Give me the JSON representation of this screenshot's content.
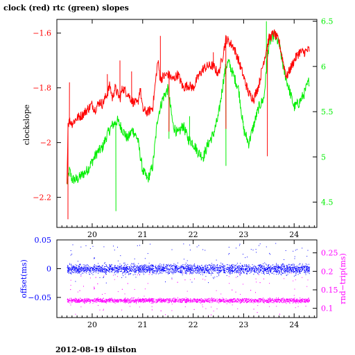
{
  "figure_title": "clock (red) rtc (green) slopes",
  "footer": "2012-08-19 dilston",
  "colors": {
    "clock": "#ff0000",
    "rtc": "#00ee00",
    "offset": "#0000ff",
    "rnd_trip": "#ff00ff",
    "frame": "#000000"
  },
  "chart_data": [
    {
      "type": "line",
      "title": "clock (red) rtc (green) slopes",
      "xlabel": "",
      "ylabel": "clockslope",
      "y2label": "",
      "xlim": [
        19.3,
        24.45
      ],
      "ylim": [
        -2.31,
        -1.55
      ],
      "y2lim": [
        4.22,
        6.52
      ],
      "xticks": [
        20,
        21,
        22,
        23,
        24
      ],
      "yticks": [
        -2.2,
        -2,
        -1.8,
        -1.6
      ],
      "y2ticks": [
        4.5,
        5,
        5.5,
        6,
        6.5
      ],
      "ytick_labels": [
        "−2.2",
        "−2",
        "−1.8",
        "−1.6"
      ],
      "y2tick_labels": [
        "4.5",
        "5",
        "5.5",
        "6",
        "6.5"
      ],
      "series": [
        {
          "name": "clock",
          "axis": "left",
          "x": [
            19.5,
            19.52,
            19.56,
            19.6,
            19.7,
            19.8,
            19.9,
            20.0,
            20.05,
            20.15,
            20.2,
            20.3,
            20.35,
            20.4,
            20.45,
            20.5,
            20.55,
            20.6,
            20.7,
            20.8,
            20.9,
            20.95,
            21.0,
            21.1,
            21.2,
            21.3,
            21.35,
            21.4,
            21.5,
            21.6,
            21.7,
            21.8,
            21.9,
            22.0,
            22.1,
            22.2,
            22.3,
            22.4,
            22.5,
            22.6,
            22.65,
            22.7,
            22.8,
            22.9,
            23.0,
            23.1,
            23.2,
            23.3,
            23.4,
            23.5,
            23.6,
            23.7,
            23.8,
            23.85,
            23.9,
            24.0,
            24.1,
            24.2,
            24.3
          ],
          "y": [
            -2.15,
            -1.93,
            -1.92,
            -1.93,
            -1.91,
            -1.9,
            -1.88,
            -1.86,
            -1.88,
            -1.85,
            -1.86,
            -1.82,
            -1.79,
            -1.84,
            -1.8,
            -1.82,
            -1.84,
            -1.8,
            -1.82,
            -1.85,
            -1.86,
            -1.8,
            -1.88,
            -1.89,
            -1.87,
            -1.7,
            -1.77,
            -1.76,
            -1.75,
            -1.77,
            -1.75,
            -1.8,
            -1.79,
            -1.8,
            -1.76,
            -1.73,
            -1.72,
            -1.72,
            -1.75,
            -1.67,
            -1.62,
            -1.63,
            -1.65,
            -1.7,
            -1.76,
            -1.82,
            -1.84,
            -1.79,
            -1.7,
            -1.62,
            -1.6,
            -1.63,
            -1.72,
            -1.76,
            -1.74,
            -1.7,
            -1.67,
            -1.67,
            -1.66
          ],
          "spikes": [
            {
              "x": 19.52,
              "y": -2.28
            },
            {
              "x": 19.55,
              "y": -1.78
            },
            {
              "x": 20.3,
              "y": -1.75
            },
            {
              "x": 20.55,
              "y": -1.7
            },
            {
              "x": 20.78,
              "y": -1.74
            },
            {
              "x": 21.35,
              "y": -1.61
            },
            {
              "x": 21.52,
              "y": -1.96
            },
            {
              "x": 22.4,
              "y": -1.67
            },
            {
              "x": 22.65,
              "y": -1.95
            },
            {
              "x": 23.47,
              "y": -2.05
            }
          ]
        },
        {
          "name": "rtc",
          "axis": "right",
          "x": [
            19.5,
            19.55,
            19.6,
            19.7,
            19.8,
            19.9,
            20.0,
            20.1,
            20.2,
            20.3,
            20.4,
            20.5,
            20.6,
            20.7,
            20.8,
            20.9,
            21.0,
            21.1,
            21.2,
            21.3,
            21.4,
            21.5,
            21.6,
            21.7,
            21.8,
            21.9,
            22.0,
            22.1,
            22.2,
            22.3,
            22.4,
            22.5,
            22.6,
            22.65,
            22.7,
            22.8,
            22.9,
            23.0,
            23.1,
            23.2,
            23.3,
            23.4,
            23.5,
            23.6,
            23.7,
            23.8,
            23.9,
            24.0,
            24.1,
            24.2,
            24.3
          ],
          "y": [
            4.7,
            4.85,
            4.75,
            4.75,
            4.8,
            4.85,
            4.95,
            5.05,
            5.1,
            5.25,
            5.35,
            5.4,
            5.3,
            5.2,
            5.3,
            5.2,
            4.85,
            4.75,
            4.9,
            5.45,
            5.65,
            5.75,
            5.35,
            5.25,
            5.35,
            5.2,
            5.15,
            5.05,
            5.0,
            5.15,
            5.25,
            5.45,
            5.85,
            6.0,
            6.05,
            5.9,
            5.75,
            5.3,
            5.15,
            5.35,
            5.55,
            5.65,
            6.25,
            6.35,
            6.25,
            5.95,
            5.75,
            5.55,
            5.6,
            5.7,
            5.85
          ],
          "spikes": [
            {
              "x": 20.47,
              "y": 4.4
            },
            {
              "x": 21.3,
              "y": 5.95
            },
            {
              "x": 21.52,
              "y": 5.2
            },
            {
              "x": 21.93,
              "y": 5.45
            },
            {
              "x": 22.65,
              "y": 4.9
            },
            {
              "x": 23.45,
              "y": 6.5
            }
          ]
        }
      ]
    },
    {
      "type": "scatter",
      "xlabel": "",
      "ylabel": "offset(ms)",
      "y2label": "rnd−trip(ms)",
      "xlim": [
        19.3,
        24.45
      ],
      "ylim": [
        -0.085,
        0.05
      ],
      "y2lim": [
        0.075,
        0.285
      ],
      "xticks": [
        20,
        21,
        22,
        23,
        24
      ],
      "yticks": [
        -0.05,
        0,
        0.05
      ],
      "y2ticks": [
        0.1,
        0.15,
        0.2,
        0.25
      ],
      "ytick_labels": [
        "−0.05",
        "0",
        "0.05"
      ],
      "y2tick_labels": [
        "0.1",
        "0.15",
        "0.2",
        "0.25"
      ],
      "series": [
        {
          "name": "offset",
          "axis": "left",
          "center": 0.0,
          "band": 0.012,
          "outliers": 0.035,
          "x_range": [
            19.5,
            24.3
          ]
        },
        {
          "name": "rnd-trip",
          "axis": "right",
          "center": 0.122,
          "band": 0.009,
          "outliers": 0.06,
          "x_range": [
            19.5,
            24.3
          ]
        }
      ]
    }
  ]
}
